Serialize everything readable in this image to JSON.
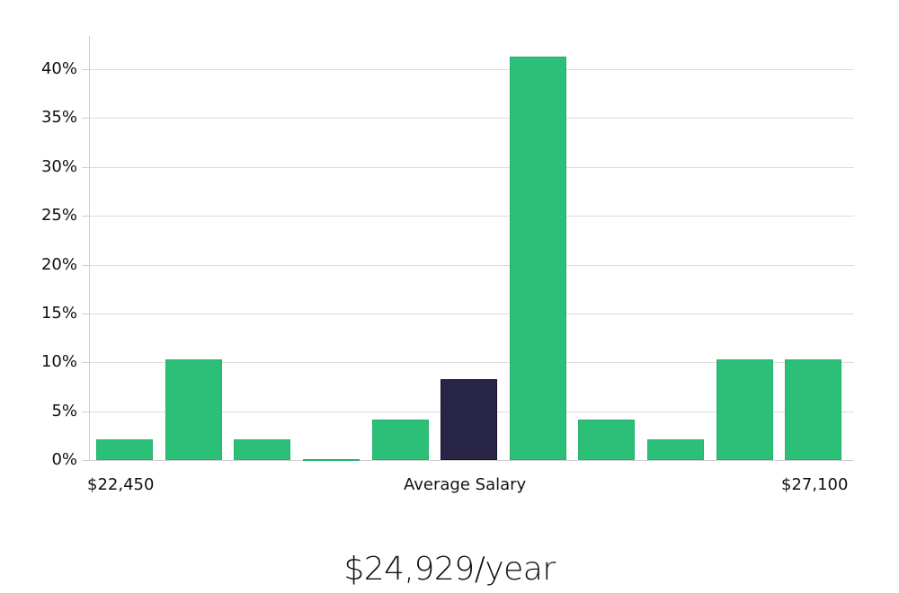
{
  "chart_data": {
    "type": "bar",
    "title": "",
    "xlabel": "Average Salary",
    "ylabel": "",
    "ylim": [
      0,
      43
    ],
    "yticks": [
      "0%",
      "5%",
      "10%",
      "15%",
      "20%",
      "25%",
      "30%",
      "35%",
      "40%"
    ],
    "x_range_labels": {
      "min": "$22,450",
      "center": "Average Salary",
      "max": "$27,100"
    },
    "categories": [
      "bin1",
      "bin2",
      "bin3",
      "bin4",
      "bin5",
      "bin6 (average)",
      "bin7",
      "bin8",
      "bin9",
      "bin10",
      "bin11"
    ],
    "values": [
      2.1,
      10.3,
      2.1,
      0.0,
      4.1,
      8.3,
      41.3,
      4.1,
      2.1,
      10.3,
      10.3
    ],
    "highlight_index": 5,
    "grid": true,
    "legend": null
  },
  "colors": {
    "bar": "#2bbf78",
    "bar_border": "#26b070",
    "highlight": "#282546",
    "highlight_border": "#15132e",
    "grid": "#dcdcdc"
  },
  "summary": {
    "salary_text": "$24,929/year"
  }
}
